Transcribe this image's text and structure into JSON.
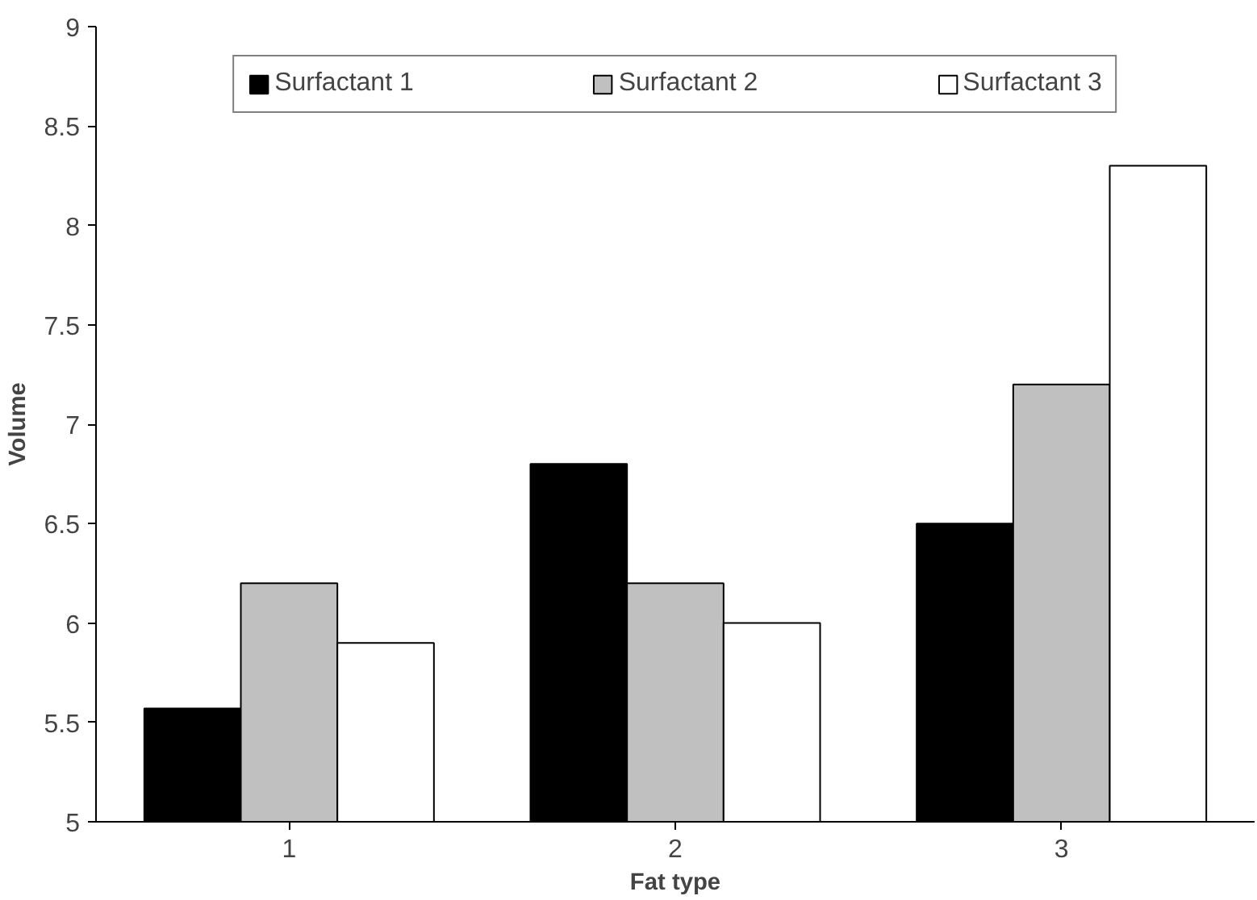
{
  "chart_data": {
    "type": "bar",
    "xlabel": "Fat type",
    "ylabel": "Volume",
    "categories": [
      "1",
      "2",
      "3"
    ],
    "series": [
      {
        "name": "Surfactant 1",
        "color": "#000000",
        "values": [
          5.57,
          6.8,
          6.5
        ]
      },
      {
        "name": "Surfactant 2",
        "color": "#c0c0c0",
        "values": [
          6.2,
          6.2,
          7.2
        ]
      },
      {
        "name": "Surfactant 3",
        "color": "#ffffff",
        "values": [
          5.9,
          6.0,
          8.3
        ]
      }
    ],
    "ylim": [
      5,
      9
    ],
    "yticks": [
      5,
      5.5,
      6,
      6.5,
      7,
      7.5,
      8,
      8.5,
      9
    ],
    "grid": false,
    "legend": "top"
  }
}
